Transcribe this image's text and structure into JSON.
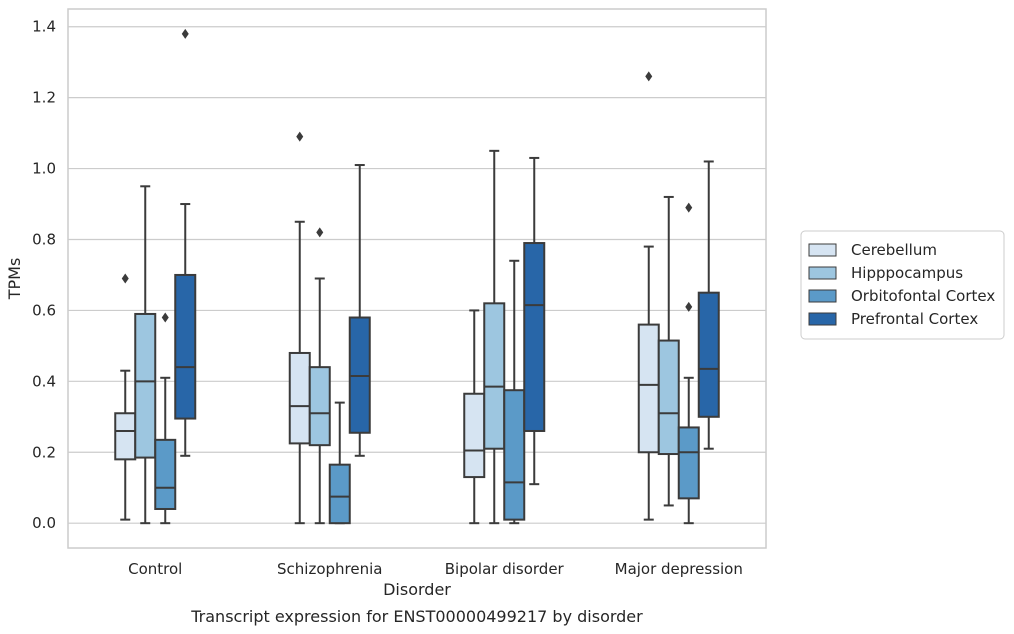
{
  "chart_data": {
    "type": "boxplot",
    "caption": "Transcript expression for ENST00000499217 by disorder",
    "xlabel": "Disorder",
    "ylabel": "TPMs",
    "ylim": [
      -0.07,
      1.45
    ],
    "yticks": [
      0.0,
      0.2,
      0.4,
      0.6,
      0.8,
      1.0,
      1.2,
      1.4
    ],
    "yticklabels": [
      "0.0",
      "0.2",
      "0.4",
      "0.6",
      "0.8",
      "1.0",
      "1.2",
      "1.4"
    ],
    "grid": "horizontal",
    "legend_position": "right",
    "categories": [
      "Control",
      "Schizophrenia",
      "Bipolar disorder",
      "Major depression"
    ],
    "series": [
      {
        "name": "Cerebellum",
        "color": "#d6e4f2",
        "boxes": [
          {
            "whisker_low": 0.01,
            "q1": 0.18,
            "median": 0.26,
            "q3": 0.31,
            "whisker_high": 0.43,
            "outliers": [
              0.69
            ]
          },
          {
            "whisker_low": 0.0,
            "q1": 0.225,
            "median": 0.33,
            "q3": 0.48,
            "whisker_high": 0.85,
            "outliers": [
              1.09
            ]
          },
          {
            "whisker_low": 0.0,
            "q1": 0.13,
            "median": 0.205,
            "q3": 0.365,
            "whisker_high": 0.6,
            "outliers": []
          },
          {
            "whisker_low": 0.01,
            "q1": 0.2,
            "median": 0.39,
            "q3": 0.56,
            "whisker_high": 0.78,
            "outliers": [
              1.26
            ]
          }
        ]
      },
      {
        "name": "Hipppocampus",
        "color": "#9dc6e0",
        "boxes": [
          {
            "whisker_low": 0.0,
            "q1": 0.185,
            "median": 0.4,
            "q3": 0.59,
            "whisker_high": 0.95,
            "outliers": []
          },
          {
            "whisker_low": 0.0,
            "q1": 0.22,
            "median": 0.31,
            "q3": 0.44,
            "whisker_high": 0.69,
            "outliers": [
              0.82
            ]
          },
          {
            "whisker_low": 0.0,
            "q1": 0.21,
            "median": 0.385,
            "q3": 0.62,
            "whisker_high": 1.05,
            "outliers": []
          },
          {
            "whisker_low": 0.05,
            "q1": 0.195,
            "median": 0.31,
            "q3": 0.515,
            "whisker_high": 0.92,
            "outliers": []
          }
        ]
      },
      {
        "name": "Orbitofontal Cortex",
        "color": "#5b9ac8",
        "boxes": [
          {
            "whisker_low": 0.0,
            "q1": 0.04,
            "median": 0.1,
            "q3": 0.235,
            "whisker_high": 0.41,
            "outliers": [
              0.58
            ]
          },
          {
            "whisker_low": 0.0,
            "q1": 0.0,
            "median": 0.075,
            "q3": 0.165,
            "whisker_high": 0.34,
            "outliers": []
          },
          {
            "whisker_low": 0.0,
            "q1": 0.01,
            "median": 0.115,
            "q3": 0.375,
            "whisker_high": 0.74,
            "outliers": []
          },
          {
            "whisker_low": 0.0,
            "q1": 0.07,
            "median": 0.2,
            "q3": 0.27,
            "whisker_high": 0.41,
            "outliers": [
              0.61,
              0.89
            ]
          }
        ]
      },
      {
        "name": "Prefrontal Cortex",
        "color": "#2866a8",
        "boxes": [
          {
            "whisker_low": 0.19,
            "q1": 0.295,
            "median": 0.44,
            "q3": 0.7,
            "whisker_high": 0.9,
            "outliers": [
              1.38
            ]
          },
          {
            "whisker_low": 0.19,
            "q1": 0.255,
            "median": 0.415,
            "q3": 0.58,
            "whisker_high": 1.01,
            "outliers": []
          },
          {
            "whisker_low": 0.11,
            "q1": 0.26,
            "median": 0.615,
            "q3": 0.79,
            "whisker_high": 1.03,
            "outliers": []
          },
          {
            "whisker_low": 0.21,
            "q1": 0.3,
            "median": 0.435,
            "q3": 0.65,
            "whisker_high": 1.02,
            "outliers": []
          }
        ]
      }
    ]
  }
}
